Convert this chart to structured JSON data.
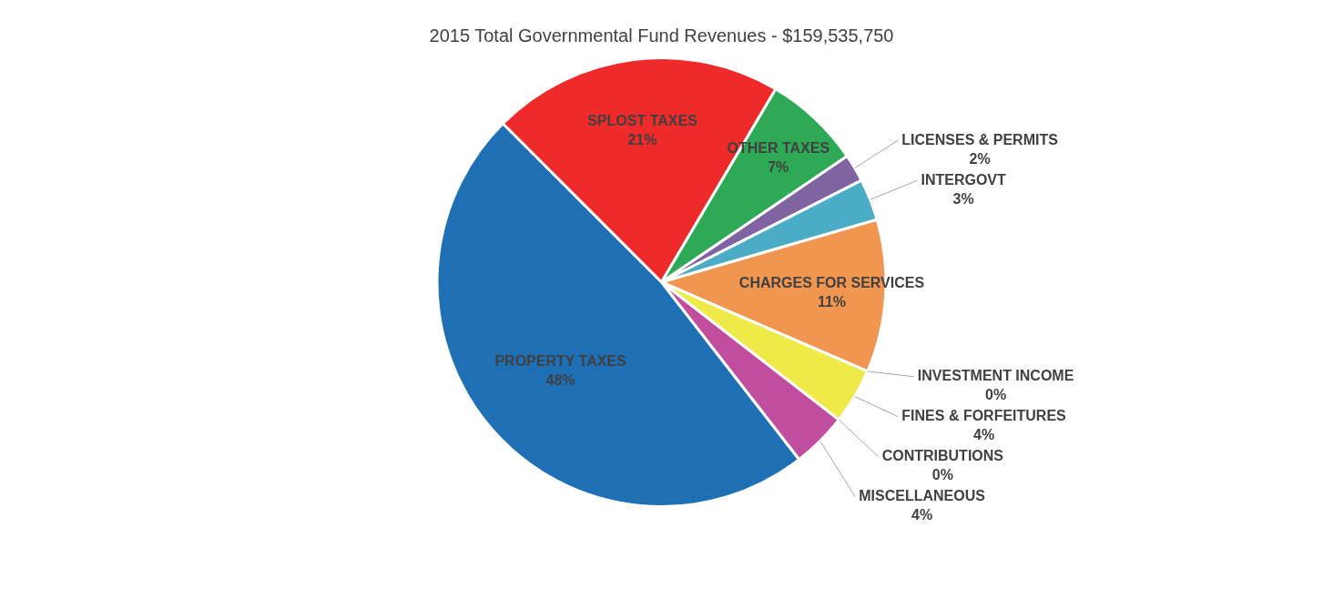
{
  "chart_data": {
    "type": "pie",
    "title": "2015 Total Governmental Fund Revenues - $159,535,750",
    "categories": [
      "SPLOST TAXES",
      "OTHER TAXES",
      "LICENSES & PERMITS",
      "INTERGOVT",
      "CHARGES FOR SERVICES",
      "INVESTMENT INCOME",
      "FINES & FORFEITURES",
      "CONTRIBUTIONS",
      "MISCELLANEOUS",
      "PROPERTY TAXES"
    ],
    "values": [
      21,
      7,
      2,
      3,
      11,
      0,
      4,
      0,
      4,
      48
    ],
    "value_labels": [
      "21%",
      "7%",
      "2%",
      "3%",
      "11%",
      "0%",
      "4%",
      "0%",
      "4%",
      "48%"
    ],
    "colors": [
      "#ee2a2a",
      "#2eaa56",
      "#8064a2",
      "#4bacc6",
      "#f09650",
      "#c8c8c8",
      "#eeea48",
      "#7f7f7f",
      "#c04d9e",
      "#1f6fb4"
    ]
  }
}
